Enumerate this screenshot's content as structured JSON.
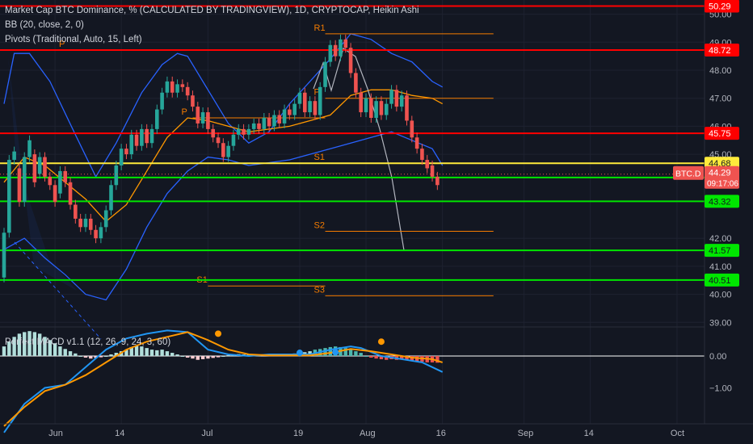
{
  "legend": {
    "title": "Market Cap BTC Dominance, % (CALCULATED BY TRADINGVIEW), 1D, CRYPTOCAP, Heikin Ashi",
    "bb": "BB (20, close, 2, 0)",
    "pivots": "Pivots (Traditional, Auto, 15, Left)",
    "macd": "Perfect MACD v1.1 (12, 26, 9, 24, 3, 60)"
  },
  "colors": {
    "background": "#131722",
    "bull": "#26a69a",
    "bear": "#ef5350",
    "bb_band": "#2962ff",
    "bb_basis": "#ff9800",
    "pivot": "#f57c00",
    "resistance": "#ff0000",
    "support": "#00e600",
    "current": "#ffeb3b",
    "macd_line": "#2196f3",
    "signal_line": "#ff9800"
  },
  "chart_data": {
    "type": "candlestick",
    "y_axis": {
      "labels": [
        {
          "v": 50.0,
          "t": "50.00"
        },
        {
          "v": 49.0,
          "t": "49.00"
        },
        {
          "v": 48.0,
          "t": "48.00"
        },
        {
          "v": 47.0,
          "t": "47.00"
        },
        {
          "v": 46.0,
          "t": "46.00"
        },
        {
          "v": 45.0,
          "t": "45.00"
        },
        {
          "v": 42.0,
          "t": "42.00"
        },
        {
          "v": 41.0,
          "t": "41.00"
        },
        {
          "v": 40.0,
          "t": "40.00"
        },
        {
          "v": 39.0,
          "t": "39.00"
        }
      ]
    },
    "x_axis": {
      "labels": [
        {
          "d": 10,
          "t": "Jun"
        },
        {
          "d": 23,
          "t": "14"
        },
        {
          "d": 40,
          "t": "Jul"
        },
        {
          "d": 58,
          "t": "19"
        },
        {
          "d": 71,
          "t": "Aug"
        },
        {
          "d": 86,
          "t": "16"
        },
        {
          "d": 102,
          "t": "Sep"
        },
        {
          "d": 115,
          "t": "14"
        },
        {
          "d": 132,
          "t": "Oct"
        }
      ]
    },
    "price_levels": [
      {
        "v": 50.29,
        "t": "50.29",
        "kind": "resistance"
      },
      {
        "v": 48.72,
        "t": "48.72",
        "kind": "resistance"
      },
      {
        "v": 45.75,
        "t": "45.75",
        "kind": "resistance"
      },
      {
        "v": 44.68,
        "t": "44.68",
        "kind": "current"
      },
      {
        "v": 44.17,
        "t": "44.17",
        "kind": "support"
      },
      {
        "v": 43.32,
        "t": "43.32",
        "kind": "support"
      },
      {
        "v": 41.57,
        "t": "41.57",
        "kind": "support"
      },
      {
        "v": 40.51,
        "t": "40.51",
        "kind": "support"
      }
    ],
    "last_price": {
      "symbol": "BTC.D",
      "value": "44.29",
      "countdown": "09:17:06"
    },
    "pivot_marks": [
      {
        "t": "P",
        "v": 48.72,
        "d0": 13,
        "d1": 38
      },
      {
        "t": "P",
        "v": 46.3,
        "d0": 37,
        "d1": 63
      },
      {
        "t": "S1",
        "v": 40.3,
        "d0": 40,
        "d1": 63
      },
      {
        "t": "R1",
        "v": 49.3,
        "d0": 63,
        "d1": 96
      },
      {
        "t": "P",
        "v": 47.0,
        "d0": 63,
        "d1": 96
      },
      {
        "t": "S1",
        "v": 44.68,
        "d0": 63,
        "d1": 96
      },
      {
        "t": "S2",
        "v": 42.25,
        "d0": 63,
        "d1": 96
      },
      {
        "t": "S3",
        "v": 39.95,
        "d0": 63,
        "d1": 96
      }
    ],
    "candles": [
      {
        "o": 40.6,
        "c": 42.2
      },
      {
        "o": 42.2,
        "c": 44.8
      },
      {
        "o": 44.8,
        "c": 45.1
      },
      {
        "o": 44.5,
        "c": 43.3
      },
      {
        "o": 43.3,
        "c": 44.9
      },
      {
        "o": 44.9,
        "c": 45.5
      },
      {
        "o": 45.0,
        "c": 44.0
      },
      {
        "o": 44.3,
        "c": 44.9
      },
      {
        "o": 44.9,
        "c": 44.2
      },
      {
        "o": 44.2,
        "c": 43.9
      },
      {
        "o": 43.9,
        "c": 43.3
      },
      {
        "o": 43.6,
        "c": 44.4
      },
      {
        "o": 44.4,
        "c": 44.0
      },
      {
        "o": 44.0,
        "c": 43.2
      },
      {
        "o": 43.2,
        "c": 42.7
      },
      {
        "o": 42.7,
        "c": 42.4
      },
      {
        "o": 42.4,
        "c": 42.7
      },
      {
        "o": 42.7,
        "c": 42.3
      },
      {
        "o": 42.3,
        "c": 42.0
      },
      {
        "o": 42.0,
        "c": 42.4
      },
      {
        "o": 42.4,
        "c": 43.0
      },
      {
        "o": 43.0,
        "c": 43.9
      },
      {
        "o": 43.9,
        "c": 44.6
      },
      {
        "o": 44.6,
        "c": 45.2
      },
      {
        "o": 45.2,
        "c": 45.0
      },
      {
        "o": 45.0,
        "c": 45.7
      },
      {
        "o": 45.7,
        "c": 45.3
      },
      {
        "o": 45.3,
        "c": 45.9
      },
      {
        "o": 45.9,
        "c": 45.4
      },
      {
        "o": 45.4,
        "c": 45.9
      },
      {
        "o": 45.9,
        "c": 46.6
      },
      {
        "o": 46.6,
        "c": 47.2
      },
      {
        "o": 47.2,
        "c": 47.6
      },
      {
        "o": 47.6,
        "c": 47.2
      },
      {
        "o": 47.2,
        "c": 47.5
      },
      {
        "o": 47.5,
        "c": 47.4
      },
      {
        "o": 47.4,
        "c": 47.1
      },
      {
        "o": 47.1,
        "c": 46.7
      },
      {
        "o": 46.7,
        "c": 46.1
      },
      {
        "o": 46.1,
        "c": 46.5
      },
      {
        "o": 46.5,
        "c": 45.9
      },
      {
        "o": 45.9,
        "c": 45.6
      },
      {
        "o": 45.6,
        "c": 45.4
      },
      {
        "o": 45.4,
        "c": 44.9
      },
      {
        "o": 44.9,
        "c": 45.3
      },
      {
        "o": 45.3,
        "c": 45.7
      },
      {
        "o": 45.7,
        "c": 45.9
      },
      {
        "o": 45.9,
        "c": 45.7
      },
      {
        "o": 45.7,
        "c": 45.9
      },
      {
        "o": 45.9,
        "c": 46.1
      },
      {
        "o": 46.1,
        "c": 45.9
      },
      {
        "o": 45.9,
        "c": 46.3
      },
      {
        "o": 46.3,
        "c": 46.0
      },
      {
        "o": 46.0,
        "c": 46.4
      },
      {
        "o": 46.4,
        "c": 46.1
      },
      {
        "o": 46.1,
        "c": 46.6
      },
      {
        "o": 46.6,
        "c": 46.4
      },
      {
        "o": 46.4,
        "c": 46.8
      },
      {
        "o": 46.8,
        "c": 47.2
      },
      {
        "o": 47.2,
        "c": 46.5
      },
      {
        "o": 46.5,
        "c": 46.9
      },
      {
        "o": 46.9,
        "c": 46.4
      },
      {
        "o": 46.4,
        "c": 47.4
      },
      {
        "o": 47.4,
        "c": 48.3
      },
      {
        "o": 48.3,
        "c": 48.9
      },
      {
        "o": 48.9,
        "c": 48.5
      },
      {
        "o": 48.5,
        "c": 49.1
      },
      {
        "o": 49.1,
        "c": 48.8
      },
      {
        "o": 48.8,
        "c": 47.9
      },
      {
        "o": 47.9,
        "c": 47.2
      },
      {
        "o": 47.2,
        "c": 46.5
      },
      {
        "o": 46.5,
        "c": 47.0
      },
      {
        "o": 47.0,
        "c": 46.3
      },
      {
        "o": 46.3,
        "c": 46.9
      },
      {
        "o": 46.9,
        "c": 46.4
      },
      {
        "o": 46.4,
        "c": 46.8
      },
      {
        "o": 46.8,
        "c": 47.3
      },
      {
        "o": 47.3,
        "c": 46.7
      },
      {
        "o": 46.7,
        "c": 47.1
      },
      {
        "o": 47.1,
        "c": 46.2
      },
      {
        "o": 46.2,
        "c": 45.6
      },
      {
        "o": 45.6,
        "c": 45.2
      },
      {
        "o": 45.2,
        "c": 44.8
      },
      {
        "o": 44.8,
        "c": 44.5
      },
      {
        "o": 44.6,
        "c": 44.2
      },
      {
        "o": 44.2,
        "c": 43.9
      }
    ],
    "bb_upper": [
      [
        0,
        46.8
      ],
      [
        2,
        48.6
      ],
      [
        5,
        48.6
      ],
      [
        9,
        47.6
      ],
      [
        14,
        45.7
      ],
      [
        18,
        44.2
      ],
      [
        22,
        45.4
      ],
      [
        27,
        47.2
      ],
      [
        31,
        48.2
      ],
      [
        34,
        48.6
      ],
      [
        36,
        48.5
      ],
      [
        40,
        47.3
      ],
      [
        44,
        46.1
      ],
      [
        48,
        45.4
      ],
      [
        52,
        45.8
      ],
      [
        56,
        46.8
      ],
      [
        60,
        47.6
      ],
      [
        64,
        48.4
      ],
      [
        68,
        49.3
      ],
      [
        72,
        49.1
      ],
      [
        76,
        48.6
      ],
      [
        80,
        48.3
      ],
      [
        84,
        47.6
      ],
      [
        86,
        47.4
      ]
    ],
    "bb_lower": [
      [
        0,
        41.6
      ],
      [
        4,
        42.0
      ],
      [
        8,
        41.3
      ],
      [
        12,
        40.7
      ],
      [
        16,
        40.0
      ],
      [
        20,
        39.8
      ],
      [
        24,
        40.9
      ],
      [
        28,
        42.4
      ],
      [
        32,
        43.6
      ],
      [
        36,
        44.4
      ],
      [
        40,
        44.9
      ],
      [
        44,
        44.8
      ],
      [
        48,
        44.6
      ],
      [
        52,
        44.7
      ],
      [
        56,
        44.8
      ],
      [
        60,
        45.0
      ],
      [
        64,
        45.2
      ],
      [
        68,
        45.4
      ],
      [
        72,
        45.6
      ],
      [
        76,
        45.8
      ],
      [
        80,
        45.5
      ],
      [
        84,
        45.2
      ],
      [
        86,
        44.6
      ]
    ],
    "bb_basis": [
      [
        0,
        44.0
      ],
      [
        4,
        44.9
      ],
      [
        8,
        44.6
      ],
      [
        12,
        44.0
      ],
      [
        16,
        43.4
      ],
      [
        20,
        42.6
      ],
      [
        24,
        43.2
      ],
      [
        28,
        44.4
      ],
      [
        32,
        45.6
      ],
      [
        36,
        46.3
      ],
      [
        40,
        46.2
      ],
      [
        44,
        46.0
      ],
      [
        48,
        45.8
      ],
      [
        52,
        45.9
      ],
      [
        56,
        46.0
      ],
      [
        60,
        46.2
      ],
      [
        64,
        46.4
      ],
      [
        68,
        47.1
      ],
      [
        72,
        47.3
      ],
      [
        76,
        47.3
      ],
      [
        80,
        47.1
      ],
      [
        84,
        47.0
      ],
      [
        86,
        46.8
      ]
    ],
    "macd": {
      "hist": [
        0.3,
        0.45,
        0.6,
        0.7,
        0.75,
        0.78,
        0.75,
        0.7,
        0.6,
        0.5,
        0.4,
        0.3,
        0.22,
        0.15,
        0.08,
        0.0,
        -0.05,
        -0.08,
        -0.06,
        -0.04,
        0.0,
        0.05,
        0.1,
        0.15,
        0.2,
        0.28,
        0.32,
        0.3,
        0.25,
        0.2,
        0.18,
        0.2,
        0.15,
        0.1,
        0.05,
        0.0,
        -0.05,
        -0.08,
        -0.12,
        -0.1,
        -0.08,
        -0.06,
        -0.04,
        0.0,
        0.03,
        0.05,
        0.06,
        0.05,
        0.04,
        0.03,
        0.02,
        0.03,
        0.05,
        0.06,
        0.05,
        0.04,
        0.06,
        0.08,
        0.1,
        0.12,
        0.15,
        0.2,
        0.22,
        0.25,
        0.28,
        0.3,
        0.28,
        0.25,
        0.2,
        0.15,
        0.1,
        0.0,
        -0.05,
        -0.08,
        -0.1,
        -0.12,
        -0.1,
        -0.12,
        -0.1,
        -0.12,
        -0.14,
        -0.16,
        -0.18,
        -0.2,
        -0.2,
        -0.21
      ],
      "macd_line": [
        [
          0,
          -2.4
        ],
        [
          4,
          -1.5
        ],
        [
          8,
          -1.0
        ],
        [
          12,
          -0.9
        ],
        [
          16,
          -0.35
        ],
        [
          20,
          0.2
        ],
        [
          24,
          0.55
        ],
        [
          28,
          0.7
        ],
        [
          32,
          0.8
        ],
        [
          36,
          0.75
        ],
        [
          40,
          0.2
        ],
        [
          44,
          0.05
        ],
        [
          48,
          0.0
        ],
        [
          52,
          0.05
        ],
        [
          56,
          0.05
        ],
        [
          60,
          0.05
        ],
        [
          64,
          0.2
        ],
        [
          68,
          0.3
        ],
        [
          70,
          0.25
        ],
        [
          74,
          0.0
        ],
        [
          78,
          -0.1
        ],
        [
          82,
          -0.2
        ],
        [
          86,
          -0.5
        ]
      ],
      "signal_line": [
        [
          0,
          -2.2
        ],
        [
          4,
          -1.6
        ],
        [
          8,
          -1.1
        ],
        [
          12,
          -0.9
        ],
        [
          16,
          -0.6
        ],
        [
          20,
          -0.2
        ],
        [
          24,
          0.2
        ],
        [
          28,
          0.45
        ],
        [
          32,
          0.6
        ],
        [
          36,
          0.75
        ],
        [
          40,
          0.5
        ],
        [
          44,
          0.2
        ],
        [
          48,
          0.05
        ],
        [
          52,
          0.02
        ],
        [
          56,
          0.02
        ],
        [
          60,
          0.02
        ],
        [
          64,
          0.1
        ],
        [
          68,
          0.22
        ],
        [
          72,
          0.15
        ],
        [
          76,
          0.05
        ],
        [
          80,
          -0.05
        ],
        [
          84,
          -0.1
        ],
        [
          86,
          -0.2
        ]
      ],
      "y_labels": [
        {
          "v": 0.0,
          "t": "0.00"
        },
        {
          "v": -1.0,
          "t": "−1.00"
        }
      ]
    }
  }
}
